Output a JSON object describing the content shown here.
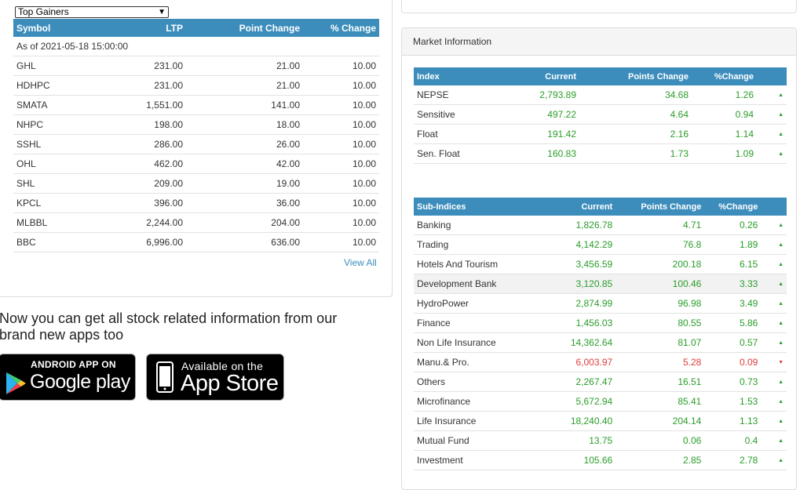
{
  "gainers": {
    "select_value": "Top Gainers",
    "headers": [
      "Symbol",
      "LTP",
      "Point Change",
      "% Change"
    ],
    "as_of": "As of 2021-05-18 15:00:00",
    "rows": [
      {
        "symbol": "GHL",
        "ltp": "231.00",
        "point_change": "21.00",
        "pct_change": "10.00"
      },
      {
        "symbol": "HDHPC",
        "ltp": "231.00",
        "point_change": "21.00",
        "pct_change": "10.00"
      },
      {
        "symbol": "SMATA",
        "ltp": "1,551.00",
        "point_change": "141.00",
        "pct_change": "10.00"
      },
      {
        "symbol": "NHPC",
        "ltp": "198.00",
        "point_change": "18.00",
        "pct_change": "10.00"
      },
      {
        "symbol": "SSHL",
        "ltp": "286.00",
        "point_change": "26.00",
        "pct_change": "10.00"
      },
      {
        "symbol": "OHL",
        "ltp": "462.00",
        "point_change": "42.00",
        "pct_change": "10.00"
      },
      {
        "symbol": "SHL",
        "ltp": "209.00",
        "point_change": "19.00",
        "pct_change": "10.00"
      },
      {
        "symbol": "KPCL",
        "ltp": "396.00",
        "point_change": "36.00",
        "pct_change": "10.00"
      },
      {
        "symbol": "MLBBL",
        "ltp": "2,244.00",
        "point_change": "204.00",
        "pct_change": "10.00"
      },
      {
        "symbol": "BBC",
        "ltp": "6,996.00",
        "point_change": "636.00",
        "pct_change": "10.00"
      }
    ],
    "view_all": "View All"
  },
  "promo": {
    "text": "Now you can get all stock related information from our brand new apps too",
    "play_small": "ANDROID APP ON",
    "play_big": "Google play",
    "apple_small": "Available on the",
    "apple_big": "App Store"
  },
  "market": {
    "title": "Market Information",
    "index_headers": [
      "Index",
      "Current",
      "Points Change",
      "%Change"
    ],
    "index_rows": [
      {
        "name": "NEPSE",
        "current": "2,793.89",
        "points": "34.68",
        "pct": "1.26",
        "trend": "up"
      },
      {
        "name": "Sensitive",
        "current": "497.22",
        "points": "4.64",
        "pct": "0.94",
        "trend": "up"
      },
      {
        "name": "Float",
        "current": "191.42",
        "points": "2.16",
        "pct": "1.14",
        "trend": "up"
      },
      {
        "name": "Sen. Float",
        "current": "160.83",
        "points": "1.73",
        "pct": "1.09",
        "trend": "up"
      }
    ],
    "sub_headers": [
      "Sub-Indices",
      "Current",
      "Points Change",
      "%Change"
    ],
    "sub_rows": [
      {
        "name": "Banking",
        "current": "1,826.78",
        "points": "4.71",
        "pct": "0.26",
        "trend": "up"
      },
      {
        "name": "Trading",
        "current": "4,142.29",
        "points": "76.8",
        "pct": "1.89",
        "trend": "up"
      },
      {
        "name": "Hotels And Tourism",
        "current": "3,456.59",
        "points": "200.18",
        "pct": "6.15",
        "trend": "up"
      },
      {
        "name": "Development Bank",
        "current": "3,120.85",
        "points": "100.46",
        "pct": "3.33",
        "trend": "up"
      },
      {
        "name": "HydroPower",
        "current": "2,874.99",
        "points": "96.98",
        "pct": "3.49",
        "trend": "up"
      },
      {
        "name": "Finance",
        "current": "1,456.03",
        "points": "80.55",
        "pct": "5.86",
        "trend": "up"
      },
      {
        "name": "Non Life Insurance",
        "current": "14,362.64",
        "points": "81.07",
        "pct": "0.57",
        "trend": "up"
      },
      {
        "name": "Manu.& Pro.",
        "current": "6,003.97",
        "points": "5.28",
        "pct": "0.09",
        "trend": "down"
      },
      {
        "name": "Others",
        "current": "2,267.47",
        "points": "16.51",
        "pct": "0.73",
        "trend": "up"
      },
      {
        "name": "Microfinance",
        "current": "5,672.94",
        "points": "85.41",
        "pct": "1.53",
        "trend": "up"
      },
      {
        "name": "Life Insurance",
        "current": "18,240.40",
        "points": "204.14",
        "pct": "1.13",
        "trend": "up"
      },
      {
        "name": "Mutual Fund",
        "current": "13.75",
        "points": "0.06",
        "pct": "0.4",
        "trend": "up"
      },
      {
        "name": "Investment",
        "current": "105.66",
        "points": "2.85",
        "pct": "2.78",
        "trend": "up"
      }
    ]
  },
  "colors": {
    "header_blue": "#3c8dbc",
    "up": "#2a9d2a",
    "down": "#e03a3a"
  }
}
